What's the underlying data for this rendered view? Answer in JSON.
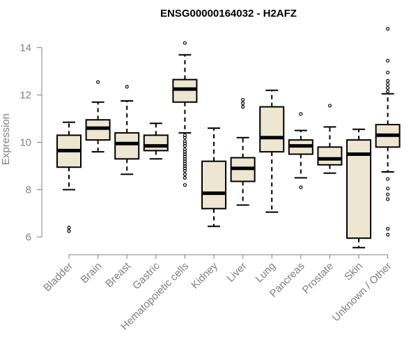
{
  "chart_data": {
    "type": "boxplot",
    "title": "ENSG00000164032 - H2AFZ",
    "xlabel": "",
    "ylabel": "Expression",
    "ylim": [
      5.5,
      14.9
    ],
    "yticks": [
      6,
      8,
      10,
      12,
      14
    ],
    "box_color": "#ede6d0",
    "categories": [
      {
        "name": "Bladder",
        "whislo": 8.0,
        "q1": 8.95,
        "med": 9.65,
        "q3": 10.3,
        "whishi": 10.85,
        "fliers": [
          6.25,
          6.4
        ]
      },
      {
        "name": "Brain",
        "whislo": 9.6,
        "q1": 10.1,
        "med": 10.6,
        "q3": 10.95,
        "whishi": 11.7,
        "fliers": [
          12.55
        ]
      },
      {
        "name": "Breast",
        "whislo": 8.65,
        "q1": 9.3,
        "med": 9.95,
        "q3": 10.4,
        "whishi": 11.75,
        "fliers": [
          12.35
        ]
      },
      {
        "name": "Gastric",
        "whislo": 9.3,
        "q1": 9.65,
        "med": 9.85,
        "q3": 10.3,
        "whishi": 10.8,
        "fliers": []
      },
      {
        "name": "Hematopoietic cells",
        "whislo": 10.4,
        "q1": 11.7,
        "med": 12.25,
        "q3": 12.65,
        "whishi": 13.7,
        "fliers": [
          14.2,
          10.3,
          10.2,
          10.05,
          9.95,
          9.85,
          9.7,
          9.6,
          9.5,
          9.4,
          9.3,
          9.2,
          9.1,
          9.0,
          8.9,
          8.8,
          8.65,
          8.5,
          8.2
        ]
      },
      {
        "name": "Kidney",
        "whislo": 6.45,
        "q1": 7.2,
        "med": 7.85,
        "q3": 9.2,
        "whishi": 10.6,
        "fliers": []
      },
      {
        "name": "Liver",
        "whislo": 7.35,
        "q1": 8.35,
        "med": 8.9,
        "q3": 9.35,
        "whishi": 10.2,
        "fliers": [
          11.8,
          11.65,
          11.5
        ]
      },
      {
        "name": "Lung",
        "whislo": 7.05,
        "q1": 9.6,
        "med": 10.2,
        "q3": 11.5,
        "whishi": 12.2,
        "fliers": []
      },
      {
        "name": "Pancreas",
        "whislo": 8.5,
        "q1": 9.5,
        "med": 9.85,
        "q3": 10.1,
        "whishi": 10.5,
        "fliers": [
          11.2,
          8.1
        ]
      },
      {
        "name": "Prostate",
        "whislo": 8.7,
        "q1": 9.05,
        "med": 9.3,
        "q3": 9.8,
        "whishi": 10.65,
        "fliers": [
          11.55
        ]
      },
      {
        "name": "Skin",
        "whislo": 5.55,
        "q1": 5.95,
        "med": 9.5,
        "q3": 10.1,
        "whishi": 10.55,
        "fliers": []
      },
      {
        "name": "Unknown / Other",
        "whislo": 8.75,
        "q1": 9.8,
        "med": 10.3,
        "q3": 10.75,
        "whishi": 12.05,
        "fliers": [
          14.8,
          13.45,
          12.95,
          12.6,
          12.45,
          12.3,
          12.15,
          8.45,
          8.05,
          7.8,
          7.6,
          6.35,
          6.1
        ]
      }
    ]
  }
}
